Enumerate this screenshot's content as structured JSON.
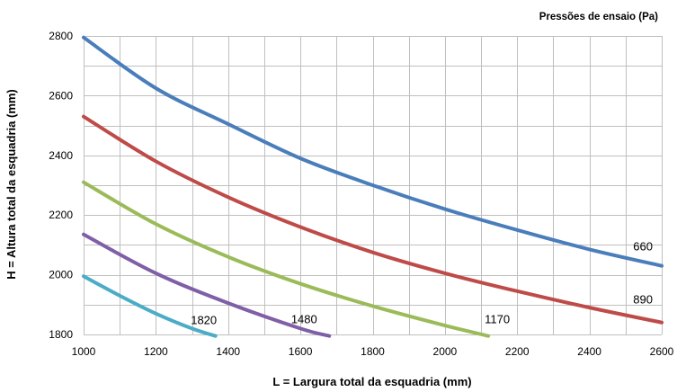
{
  "chart_data": {
    "type": "line",
    "title": "",
    "legend_title": "Pressões de ensaio  (Pa)",
    "xlabel": "L = Largura total da esquadria (mm)",
    "ylabel": "H = Altura total da esquadria (mm)",
    "xlim": [
      1000,
      2600
    ],
    "ylim": [
      1800,
      2800
    ],
    "x_ticks": [
      1000,
      1200,
      1400,
      1600,
      1800,
      2000,
      2200,
      2400,
      2600
    ],
    "y_ticks": [
      1800,
      2000,
      2200,
      2400,
      2600,
      2800
    ],
    "grid": true,
    "series": [
      {
        "name": "660",
        "color": "#4a7ebb",
        "x": [
          1000,
          1200,
          1400,
          1600,
          1800,
          2000,
          2200,
          2400,
          2600
        ],
        "y": [
          2795,
          2625,
          2505,
          2390,
          2300,
          2220,
          2150,
          2085,
          2030
        ]
      },
      {
        "name": "890",
        "color": "#be4b48",
        "x": [
          1000,
          1200,
          1400,
          1600,
          1800,
          2000,
          2200,
          2400,
          2600
        ],
        "y": [
          2530,
          2380,
          2260,
          2160,
          2075,
          2005,
          1945,
          1890,
          1840
        ]
      },
      {
        "name": "1170",
        "color": "#9bbb59",
        "x": [
          1000,
          1200,
          1400,
          1600,
          1800,
          2000,
          2120
        ],
        "y": [
          2310,
          2170,
          2060,
          1970,
          1895,
          1830,
          1795
        ]
      },
      {
        "name": "1480",
        "color": "#7f5fa6",
        "x": [
          1000,
          1200,
          1400,
          1600,
          1680
        ],
        "y": [
          2135,
          2005,
          1905,
          1820,
          1795
        ]
      },
      {
        "name": "1820",
        "color": "#4bacc6",
        "x": [
          1000,
          1100,
          1200,
          1300,
          1365
        ],
        "y": [
          1995,
          1930,
          1870,
          1820,
          1795
        ]
      }
    ]
  }
}
